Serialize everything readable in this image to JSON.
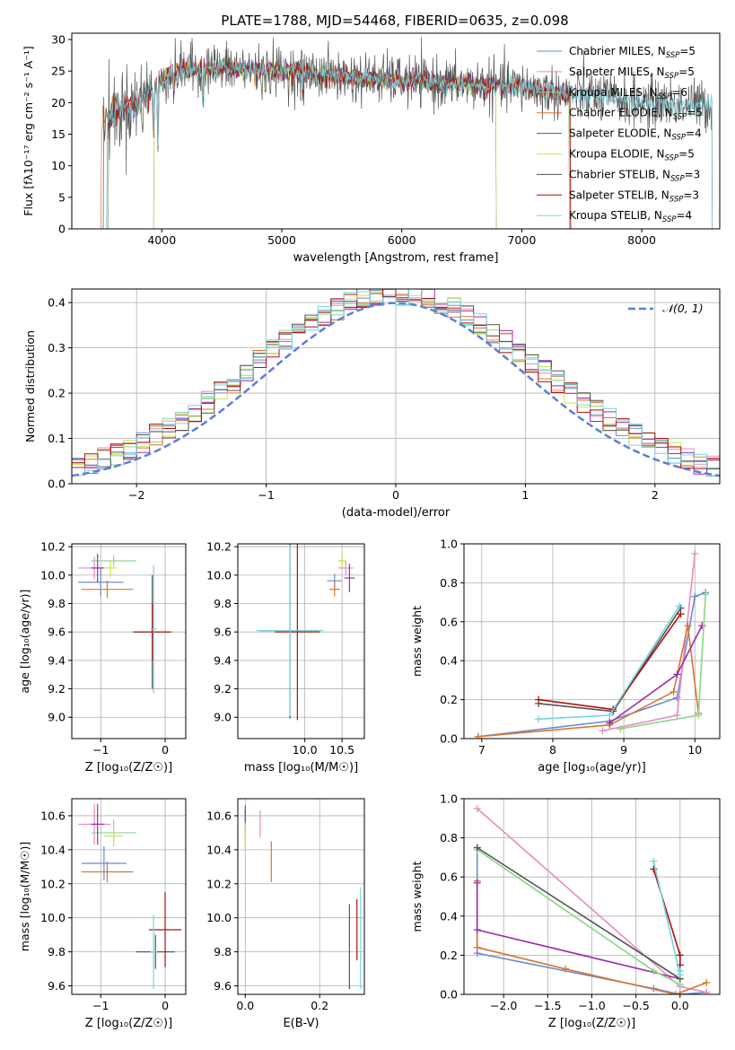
{
  "title": "PLATE=1788, MJD=54468, FIBERID=0635, z=0.098",
  "colors": [
    "#6b8bd6",
    "#e98ac0",
    "#8fd694",
    "#d9762e",
    "#9b2ca8",
    "#c7e84a",
    "#555555",
    "#b01010",
    "#74d4e0"
  ],
  "chart_data": [
    {
      "type": "line",
      "id": "spectrum",
      "xlabel": "wavelength [Angstrom, rest frame]",
      "ylabel": "Flux [fλ10⁻¹⁷ erg cm⁻² s⁻¹ A⁻¹]",
      "xlim": [
        3250,
        8650
      ],
      "ylim": [
        0,
        31
      ],
      "xticks": [
        4000,
        5000,
        6000,
        7000,
        8000
      ],
      "yticks": [
        0,
        5,
        10,
        15,
        20,
        25,
        30
      ],
      "legend": "top-right",
      "series": [
        {
          "name": "Chabrier MILES, N",
          "sub": "SSP",
          "suffix": "=5",
          "color": "#6b8bd6",
          "range": [
            3540,
            7410
          ]
        },
        {
          "name": "Salpeter MILES, N",
          "sub": "SSP",
          "suffix": "=5",
          "color": "#e98ac0",
          "range": [
            3540,
            7410
          ]
        },
        {
          "name": "Kroupa MILES, N",
          "sub": "SSP",
          "suffix": "=6",
          "color": "#8fd694",
          "range": [
            3540,
            7410
          ]
        },
        {
          "name": "Chabrier ELODIE, N",
          "sub": "SSP",
          "suffix": "=5",
          "color": "#d9762e",
          "range": [
            3480,
            7420
          ]
        },
        {
          "name": "Salpeter ELODIE, N",
          "sub": "SSP",
          "suffix": "=4",
          "color": "#9b2ca8",
          "range": [
            3920,
            6800
          ]
        },
        {
          "name": "Kroupa ELODIE, N",
          "sub": "SSP",
          "suffix": "=5",
          "color": "#c7e84a",
          "range": [
            3920,
            6800
          ]
        },
        {
          "name": "Chabrier STELIB, N",
          "sub": "SSP",
          "suffix": "=3",
          "color": "#555555",
          "range": [
            3500,
            8600
          ]
        },
        {
          "name": "Salpeter STELIB, N",
          "sub": "SSP",
          "suffix": "=3",
          "color": "#b01010",
          "range": [
            3530,
            7420
          ]
        },
        {
          "name": "Kroupa STELIB, N",
          "sub": "SSP",
          "suffix": "=4",
          "color": "#74d4e0",
          "range": [
            3530,
            8600
          ]
        }
      ],
      "continuum": [
        [
          3500,
          17
        ],
        [
          3650,
          19
        ],
        [
          3800,
          20
        ],
        [
          3950,
          23
        ],
        [
          4100,
          25
        ],
        [
          4400,
          25.5
        ],
        [
          4700,
          25.3
        ],
        [
          5000,
          25
        ],
        [
          5300,
          24.5
        ],
        [
          5600,
          24
        ],
        [
          6000,
          23.5
        ],
        [
          6400,
          23
        ],
        [
          6700,
          22.8
        ],
        [
          7000,
          22.5
        ],
        [
          7300,
          21.5
        ],
        [
          7600,
          21
        ],
        [
          8000,
          20
        ],
        [
          8300,
          19.8
        ],
        [
          8600,
          19.5
        ]
      ],
      "absorption": [
        [
          3933,
          8
        ],
        [
          3968,
          10
        ],
        [
          4102,
          4
        ],
        [
          4340,
          5
        ],
        [
          4861,
          3
        ],
        [
          5175,
          3
        ]
      ]
    },
    {
      "type": "step",
      "id": "residuals",
      "xlabel": "(data-model)/error",
      "ylabel": "Normed distribution",
      "xlim": [
        -2.5,
        2.5
      ],
      "ylim": [
        0,
        0.43
      ],
      "xticks": [
        -2,
        -1,
        0,
        1,
        2
      ],
      "yticks": [
        0.0,
        0.1,
        0.2,
        0.3,
        0.4
      ],
      "bin_width": 0.1,
      "gaussian_label": "𝒩(0, 1)",
      "gaussian_color": "#5b7fd6",
      "legend": "top-right"
    },
    {
      "type": "scatter",
      "id": "age_vs_Z",
      "xlabel": "Z [log₁₀(Z/Z☉)]",
      "ylabel": "age  [log₁₀(age/yr)]",
      "xlim": [
        -1.45,
        0.32
      ],
      "ylim": [
        8.85,
        10.22
      ],
      "xticks": [
        -1,
        0
      ],
      "yticks": [
        9.0,
        9.2,
        9.4,
        9.6,
        9.8,
        10.0,
        10.2
      ],
      "points": [
        {
          "x": -1.0,
          "y": 9.95,
          "xerr": 0.35,
          "yerr": 0.1,
          "c": 0
        },
        {
          "x": -1.1,
          "y": 10.05,
          "xerr": 0.25,
          "yerr": 0.08,
          "c": 1
        },
        {
          "x": -0.8,
          "y": 10.1,
          "xerr": 0.35,
          "yerr": 0.04,
          "c": 2
        },
        {
          "x": -0.9,
          "y": 9.9,
          "xerr": 0.4,
          "yerr": 0.06,
          "c": 3
        },
        {
          "x": -1.05,
          "y": 10.05,
          "xerr": 0.1,
          "yerr": 0.1,
          "c": 4
        },
        {
          "x": -0.85,
          "y": 10.05,
          "xerr": 0.1,
          "yerr": 0.06,
          "c": 5
        },
        {
          "x": -0.2,
          "y": 9.6,
          "xerr": 0.3,
          "yerr": 0.4,
          "c": 6
        },
        {
          "x": -0.2,
          "y": 9.6,
          "xerr": 0.28,
          "yerr": 0.2,
          "c": 7
        },
        {
          "x": -0.18,
          "y": 9.62,
          "xerr": 0.05,
          "yerr": 0.45,
          "c": 8
        }
      ]
    },
    {
      "type": "scatter",
      "id": "age_vs_mass",
      "xlabel": "mass [log₁₀(M/M☉)]",
      "ylabel": "",
      "xlim": [
        9.1,
        10.8
      ],
      "ylim": [
        8.85,
        10.22
      ],
      "xticks": [
        10.0,
        10.5
      ],
      "yticks": [
        9.0,
        9.2,
        9.4,
        9.6,
        9.8,
        10.0,
        10.2
      ],
      "points": [
        {
          "x": 10.4,
          "y": 9.96,
          "xerr": 0.1,
          "yerr": 0.05,
          "c": 0
        },
        {
          "x": 10.55,
          "y": 10.05,
          "xerr": 0.1,
          "yerr": 0.05,
          "c": 1
        },
        {
          "x": 10.5,
          "y": 10.1,
          "xerr": 0.05,
          "yerr": 0.04,
          "c": 2
        },
        {
          "x": 10.4,
          "y": 9.9,
          "xerr": 0.07,
          "yerr": 0.05,
          "c": 3
        },
        {
          "x": 10.6,
          "y": 9.98,
          "xerr": 0.07,
          "yerr": 0.1,
          "c": 4
        },
        {
          "x": 10.5,
          "y": 10.1,
          "xerr": 0.05,
          "yerr": 0.04,
          "c": 5
        },
        {
          "x": 9.8,
          "y": 9.61,
          "xerr": 0.4,
          "yerr": 0.62,
          "c": 6
        },
        {
          "x": 9.9,
          "y": 9.6,
          "xerr": 0.3,
          "yerr": 0.62,
          "c": 7
        },
        {
          "x": 9.8,
          "y": 9.61,
          "xerr": 0.45,
          "yerr": 0.6,
          "c": 8
        }
      ]
    },
    {
      "type": "line",
      "id": "weight_vs_age",
      "xlabel": "age  [log₁₀(age/yr)]",
      "ylabel": "mass weight",
      "xlim": [
        6.75,
        10.35
      ],
      "ylim": [
        0,
        1.0
      ],
      "xticks": [
        7,
        8,
        9,
        10
      ],
      "yticks": [
        0.0,
        0.2,
        0.4,
        0.6,
        0.8,
        1.0
      ],
      "series": [
        {
          "c": 0,
          "pts": [
            [
              6.95,
              0.01
            ],
            [
              8.8,
              0.09
            ],
            [
              9.75,
              0.21
            ],
            [
              10.0,
              0.73
            ],
            [
              10.15,
              0.75
            ]
          ]
        },
        {
          "c": 1,
          "pts": [
            [
              8.7,
              0.04
            ],
            [
              9.75,
              0.12
            ],
            [
              10.0,
              0.95
            ]
          ]
        },
        {
          "c": 3,
          "pts": [
            [
              6.95,
              0.01
            ],
            [
              8.8,
              0.07
            ],
            [
              9.7,
              0.24
            ],
            [
              9.9,
              0.58
            ],
            [
              10.05,
              0.13
            ]
          ]
        },
        {
          "c": 4,
          "pts": [
            [
              8.8,
              0.08
            ],
            [
              9.75,
              0.33
            ],
            [
              10.1,
              0.58
            ]
          ]
        },
        {
          "c": 5,
          "pts": [
            [
              8.95,
              0.05
            ],
            [
              10.05,
              0.12
            ],
            [
              10.15,
              0.74
            ]
          ]
        },
        {
          "c": 6,
          "pts": [
            [
              7.8,
              0.18
            ],
            [
              8.85,
              0.14
            ],
            [
              9.8,
              0.67
            ]
          ]
        },
        {
          "c": 7,
          "pts": [
            [
              7.8,
              0.2
            ],
            [
              8.85,
              0.15
            ],
            [
              9.8,
              0.64
            ]
          ]
        },
        {
          "c": 8,
          "pts": [
            [
              7.8,
              0.1
            ],
            [
              8.8,
              0.12
            ],
            [
              9.78,
              0.68
            ]
          ]
        },
        {
          "c": 2,
          "pts": [
            [
              8.95,
              0.05
            ],
            [
              10.05,
              0.12
            ],
            [
              10.15,
              0.74
            ]
          ]
        }
      ]
    },
    {
      "type": "scatter",
      "id": "mass_vs_Z",
      "xlabel": "Z [log₁₀(Z/Z☉)]",
      "ylabel": "mass [log₁₀(M/M☉)]",
      "xlim": [
        -1.45,
        0.32
      ],
      "ylim": [
        9.55,
        10.7
      ],
      "xticks": [
        -1,
        0
      ],
      "yticks": [
        9.6,
        9.8,
        10.0,
        10.2,
        10.4,
        10.6
      ],
      "points": [
        {
          "x": -0.95,
          "y": 10.32,
          "xerr": 0.35,
          "yerr": 0.1,
          "c": 0
        },
        {
          "x": -1.1,
          "y": 10.55,
          "xerr": 0.25,
          "yerr": 0.12,
          "c": 1
        },
        {
          "x": -0.8,
          "y": 10.5,
          "xerr": 0.35,
          "yerr": 0.08,
          "c": 2
        },
        {
          "x": -0.9,
          "y": 10.27,
          "xerr": 0.4,
          "yerr": 0.06,
          "c": 3
        },
        {
          "x": -1.05,
          "y": 10.55,
          "xerr": 0.1,
          "yerr": 0.12,
          "c": 4
        },
        {
          "x": -0.8,
          "y": 10.48,
          "xerr": 0.15,
          "yerr": 0.05,
          "c": 5
        },
        {
          "x": -0.15,
          "y": 9.8,
          "xerr": 0.3,
          "yerr": 0.1,
          "c": 6
        },
        {
          "x": 0.0,
          "y": 9.93,
          "xerr": 0.25,
          "yerr": 0.22,
          "c": 7
        },
        {
          "x": -0.18,
          "y": 9.8,
          "xerr": 0.05,
          "yerr": 0.22,
          "c": 8
        }
      ]
    },
    {
      "type": "scatter",
      "id": "mass_vs_ebv",
      "xlabel": "E(B-V)",
      "ylabel": "",
      "xlim": [
        -0.02,
        0.32
      ],
      "ylim": [
        9.55,
        10.7
      ],
      "xticks": [
        0.0,
        0.2
      ],
      "yticks": [
        9.6,
        9.8,
        10.0,
        10.2,
        10.4,
        10.6
      ],
      "points": [
        {
          "x": 0.0,
          "y": 10.55,
          "xerr": 0,
          "yerr": 0.08,
          "c": 0
        },
        {
          "x": 0.04,
          "y": 10.55,
          "xerr": 0,
          "yerr": 0.08,
          "c": 1
        },
        {
          "x": 0.0,
          "y": 10.45,
          "xerr": 0,
          "yerr": 0.06,
          "c": 2
        },
        {
          "x": 0.07,
          "y": 10.33,
          "xerr": 0,
          "yerr": 0.12,
          "c": 3
        },
        {
          "x": 0.0,
          "y": 10.58,
          "xerr": 0,
          "yerr": 0.08,
          "c": 4
        },
        {
          "x": 0.0,
          "y": 10.48,
          "xerr": 0,
          "yerr": 0.08,
          "c": 5
        },
        {
          "x": 0.28,
          "y": 9.83,
          "xerr": 0,
          "yerr": 0.25,
          "c": 6
        },
        {
          "x": 0.3,
          "y": 9.93,
          "xerr": 0,
          "yerr": 0.18,
          "c": 7
        },
        {
          "x": 0.31,
          "y": 9.88,
          "xerr": 0,
          "yerr": 0.3,
          "c": 8
        }
      ]
    },
    {
      "type": "line",
      "id": "weight_vs_Z",
      "xlabel": "Z [log₁₀(Z/Z☉)]",
      "ylabel": "mass weight",
      "xlim": [
        -2.45,
        0.45
      ],
      "ylim": [
        0,
        1.0
      ],
      "xticks": [
        -2.0,
        -1.5,
        -1.0,
        -0.5,
        0.0
      ],
      "yticks": [
        0.0,
        0.2,
        0.4,
        0.6,
        0.8,
        1.0
      ],
      "series": [
        {
          "c": 0,
          "pts": [
            [
              -2.3,
              0.75
            ],
            [
              -2.3,
              0.21
            ],
            [
              -0.3,
              0.03
            ],
            [
              0.0,
              0.0
            ],
            [
              0.3,
              0.01
            ]
          ]
        },
        {
          "c": 1,
          "pts": [
            [
              -2.3,
              0.95
            ],
            [
              0.0,
              0.04
            ],
            [
              0.3,
              0.01
            ]
          ]
        },
        {
          "c": 3,
          "pts": [
            [
              -2.3,
              0.58
            ],
            [
              -2.3,
              0.24
            ],
            [
              -1.3,
              0.13
            ],
            [
              -0.05,
              0.0
            ],
            [
              0.3,
              0.06
            ]
          ]
        },
        {
          "c": 4,
          "pts": [
            [
              -2.3,
              0.57
            ],
            [
              -2.3,
              0.33
            ],
            [
              0.0,
              0.08
            ]
          ]
        },
        {
          "c": 5,
          "pts": [
            [
              -2.3,
              0.74
            ],
            [
              -0.3,
              0.12
            ],
            [
              0.0,
              0.05
            ]
          ]
        },
        {
          "c": 2,
          "pts": [
            [
              -2.3,
              0.74
            ],
            [
              -0.3,
              0.12
            ],
            [
              0.0,
              0.05
            ]
          ]
        },
        {
          "c": 6,
          "pts": [
            [
              -2.3,
              0.75
            ],
            [
              0.0,
              0.08
            ],
            [
              0.0,
              0.2
            ]
          ]
        },
        {
          "c": 7,
          "pts": [
            [
              -0.3,
              0.64
            ],
            [
              0.0,
              0.2
            ],
            [
              0.0,
              0.15
            ]
          ]
        },
        {
          "c": 8,
          "pts": [
            [
              -0.3,
              0.68
            ],
            [
              0.0,
              0.1
            ],
            [
              0.0,
              0.12
            ]
          ]
        }
      ]
    }
  ]
}
